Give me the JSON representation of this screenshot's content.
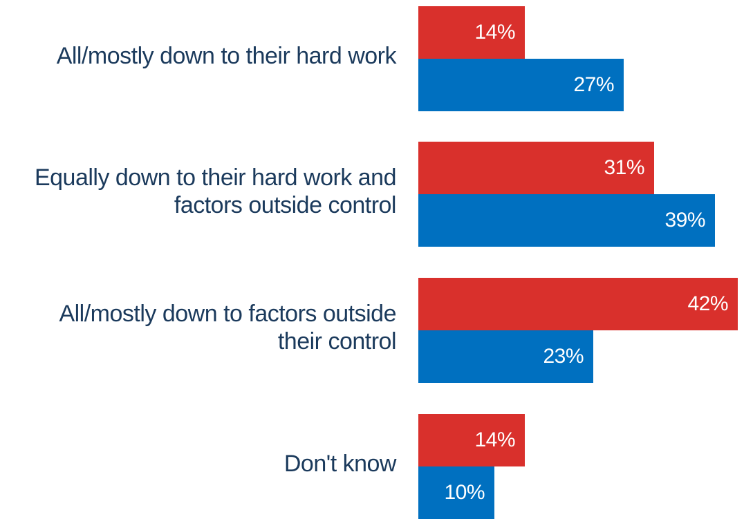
{
  "chart_data": {
    "type": "bar",
    "orientation": "horizontal",
    "categories": [
      "All/mostly down to their hard work",
      "Equally down to their hard work and factors outside control",
      "All/mostly down to factors outside their control",
      "Don't know"
    ],
    "category_lines": [
      [
        "All/mostly down to their hard work"
      ],
      [
        "Equally down to their hard work and",
        "factors outside control"
      ],
      [
        "All/mostly down to factors outside",
        "their control"
      ],
      [
        "Don't know"
      ]
    ],
    "series": [
      {
        "values": [
          14,
          31,
          42,
          14
        ],
        "labels": [
          "14%",
          "31%",
          "42%",
          "14%"
        ],
        "color": "#d9302c"
      },
      {
        "values": [
          27,
          39,
          23,
          10
        ],
        "labels": [
          "27%",
          "39%",
          "23%",
          "10%"
        ],
        "color": "#0070c0"
      }
    ],
    "xlim": [
      0,
      42
    ],
    "grid": false,
    "legend": "none"
  }
}
